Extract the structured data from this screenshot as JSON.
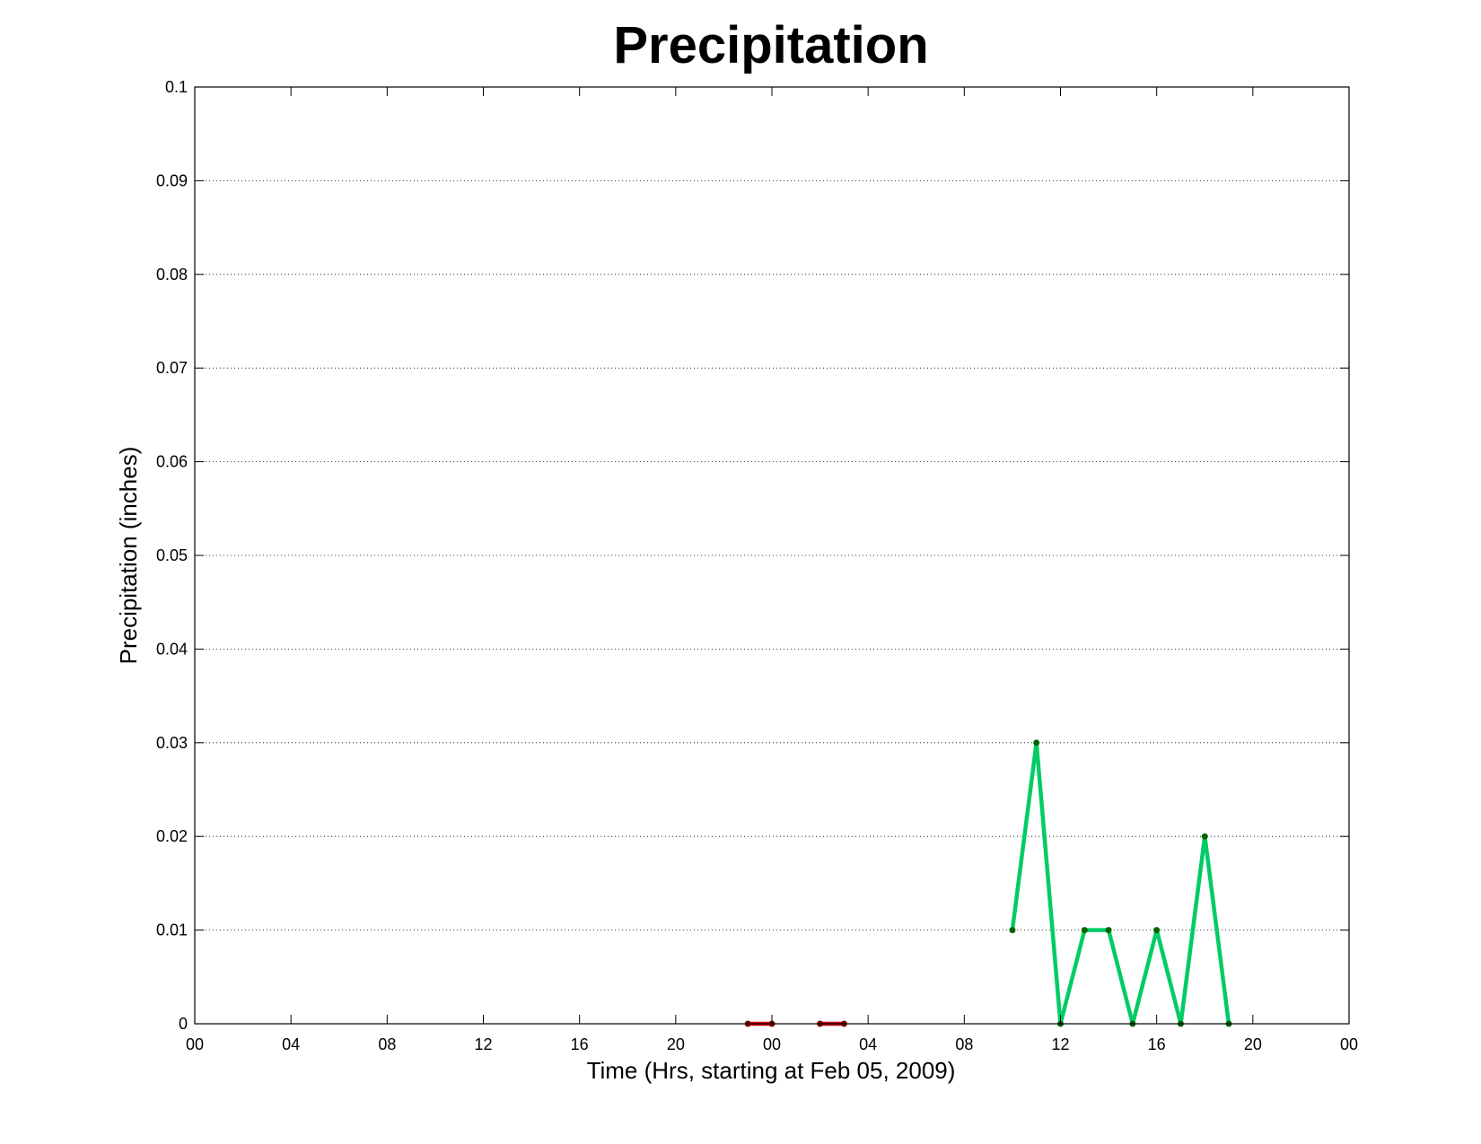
{
  "chart_data": {
    "type": "line",
    "title": "Precipitation",
    "xlabel": "Time (Hrs, starting at Feb 05, 2009)",
    "ylabel": "Precipitation (inches)",
    "xlim": [
      "2009-02-05 00:00",
      "2009-02-07 00:00"
    ],
    "ylim": [
      0,
      0.1
    ],
    "x_tick_labels": [
      "00",
      "04",
      "08",
      "12",
      "16",
      "20",
      "00",
      "04",
      "08",
      "12",
      "16",
      "20",
      "00"
    ],
    "y_ticks": [
      0,
      0.01,
      0.02,
      0.03,
      0.04,
      0.05,
      0.06,
      0.07,
      0.08,
      0.09,
      0.1
    ],
    "y_tick_labels": [
      "0",
      "0.01",
      "0.02",
      "0.03",
      "0.04",
      "0.05",
      "0.06",
      "0.07",
      "0.08",
      "0.09",
      "0.1"
    ],
    "grid": true,
    "series": [
      {
        "color": "#cc0000",
        "marker_color": "#800000",
        "points": [
          {
            "x": "2009-02-05 23:00",
            "y": 0
          },
          {
            "x": "2009-02-06 00:00",
            "y": 0
          }
        ]
      },
      {
        "color": "#cc0000",
        "marker_color": "#800000",
        "points": [
          {
            "x": "2009-02-06 02:00",
            "y": 0
          },
          {
            "x": "2009-02-06 03:00",
            "y": 0
          }
        ]
      },
      {
        "color": "#00cc66",
        "marker_color": "#006600",
        "points": [
          {
            "x": "2009-02-06 10:00",
            "y": 0.01
          },
          {
            "x": "2009-02-06 11:00",
            "y": 0.03
          },
          {
            "x": "2009-02-06 12:00",
            "y": 0
          },
          {
            "x": "2009-02-06 13:00",
            "y": 0.01
          },
          {
            "x": "2009-02-06 14:00",
            "y": 0.01
          },
          {
            "x": "2009-02-06 15:00",
            "y": 0
          },
          {
            "x": "2009-02-06 16:00",
            "y": 0.01
          },
          {
            "x": "2009-02-06 17:00",
            "y": 0
          },
          {
            "x": "2009-02-06 18:00",
            "y": 0.02
          },
          {
            "x": "2009-02-06 19:00",
            "y": 0
          }
        ]
      }
    ]
  }
}
